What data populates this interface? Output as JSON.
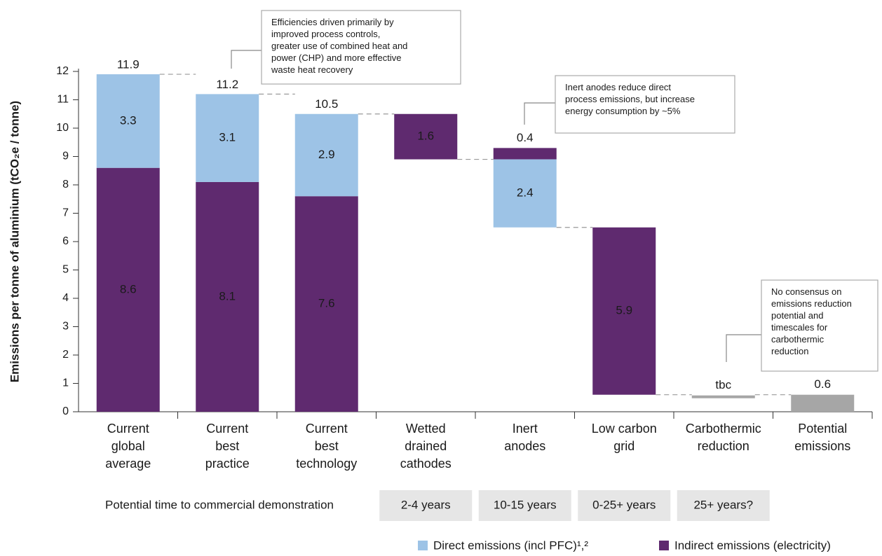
{
  "chart_data": {
    "type": "waterfall",
    "ylabel": "Emissions per tonne of aluminium (tCO₂e / tonne)",
    "categories": [
      "Current\nglobal\naverage",
      "Current\nbest\npractice",
      "Current\nbest\ntechnology",
      "Wetted\ndrained\ncathodes",
      "Inert\nanodes",
      "Low carbon\ngrid",
      "Carbothermic\nreduction",
      "Potential\nemissions"
    ],
    "series": [
      {
        "name": "Direct emissions (incl PFC)¹,²",
        "color": "#9dc3e6",
        "values": [
          3.3,
          3.1,
          2.9,
          null,
          -2.4,
          null,
          null,
          null
        ],
        "value_labels": [
          null,
          null,
          null,
          null,
          "2.4",
          null,
          null,
          null
        ]
      },
      {
        "name": "Indirect emissions (electricity)",
        "color": "#5f2a6f",
        "values": [
          8.6,
          8.1,
          7.6,
          -1.6,
          0.4,
          -5.9,
          null,
          null
        ],
        "value_labels": [
          null,
          null,
          null,
          "1.6",
          null,
          "5.9",
          null,
          null
        ]
      }
    ],
    "totals": [
      11.9,
      11.2,
      10.5,
      null,
      null,
      null,
      null,
      null
    ],
    "result": {
      "color": "#a6a6a6",
      "values": [
        null,
        null,
        null,
        null,
        null,
        null,
        null,
        0.6
      ],
      "value_labels": [
        null,
        null,
        null,
        null,
        null,
        null,
        "tbc",
        null
      ]
    },
    "ylim": [
      0,
      12
    ],
    "yticks": [
      0,
      1,
      2,
      3,
      4,
      5,
      6,
      7,
      8,
      9,
      10,
      11,
      12
    ],
    "timeline": {
      "label": "Potential time to commercial demonstration",
      "items": [
        null,
        null,
        null,
        "2-4 years",
        "10-15 years",
        "0-25+ years",
        "25+ years?",
        null
      ]
    },
    "annotations": [
      {
        "text": "Efficiencies driven primarily by\nimproved process controls,\ngreater use of combined heat and\npower (CHP) and more effective\nwaste heat recovery"
      },
      {
        "text": "Inert anodes reduce direct\nprocess emissions, but increase\nenergy consumption by ~5%"
      },
      {
        "text": "No consensus on\nemissions reduction\npotential and\ntimescales for\ncarbothermic\nreduction"
      }
    ]
  }
}
